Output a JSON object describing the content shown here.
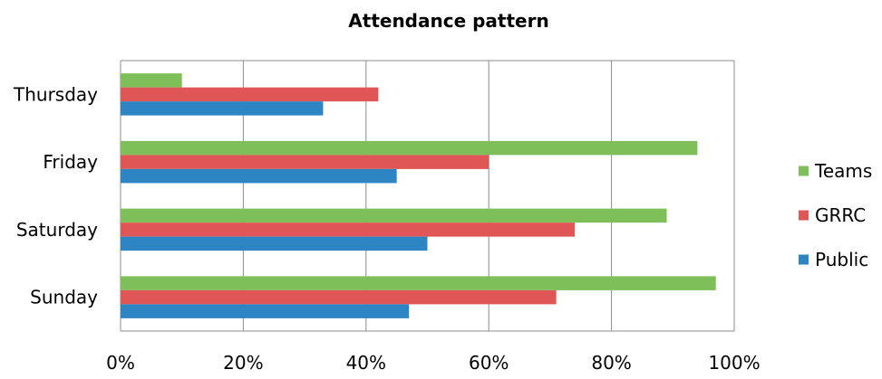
{
  "chart_data": {
    "type": "bar",
    "orientation": "horizontal",
    "title": "Attendance pattern",
    "xlabel": "",
    "ylabel": "",
    "categories": [
      "Thursday",
      "Friday",
      "Saturday",
      "Sunday"
    ],
    "series": [
      {
        "name": "Teams",
        "color": "#7fbf5a",
        "values": [
          10,
          94,
          89,
          97
        ]
      },
      {
        "name": "GRRC",
        "color": "#e05555",
        "values": [
          42,
          60,
          74,
          71
        ]
      },
      {
        "name": "Public",
        "color": "#2d86c3",
        "values": [
          33,
          45,
          50,
          47
        ]
      }
    ],
    "xlim": [
      0,
      100
    ],
    "xticks": [
      0,
      20,
      40,
      60,
      80,
      100
    ],
    "xtick_labels": [
      "0%",
      "20%",
      "40%",
      "60%",
      "80%",
      "100%"
    ],
    "grid": true,
    "legend_position": "right"
  }
}
